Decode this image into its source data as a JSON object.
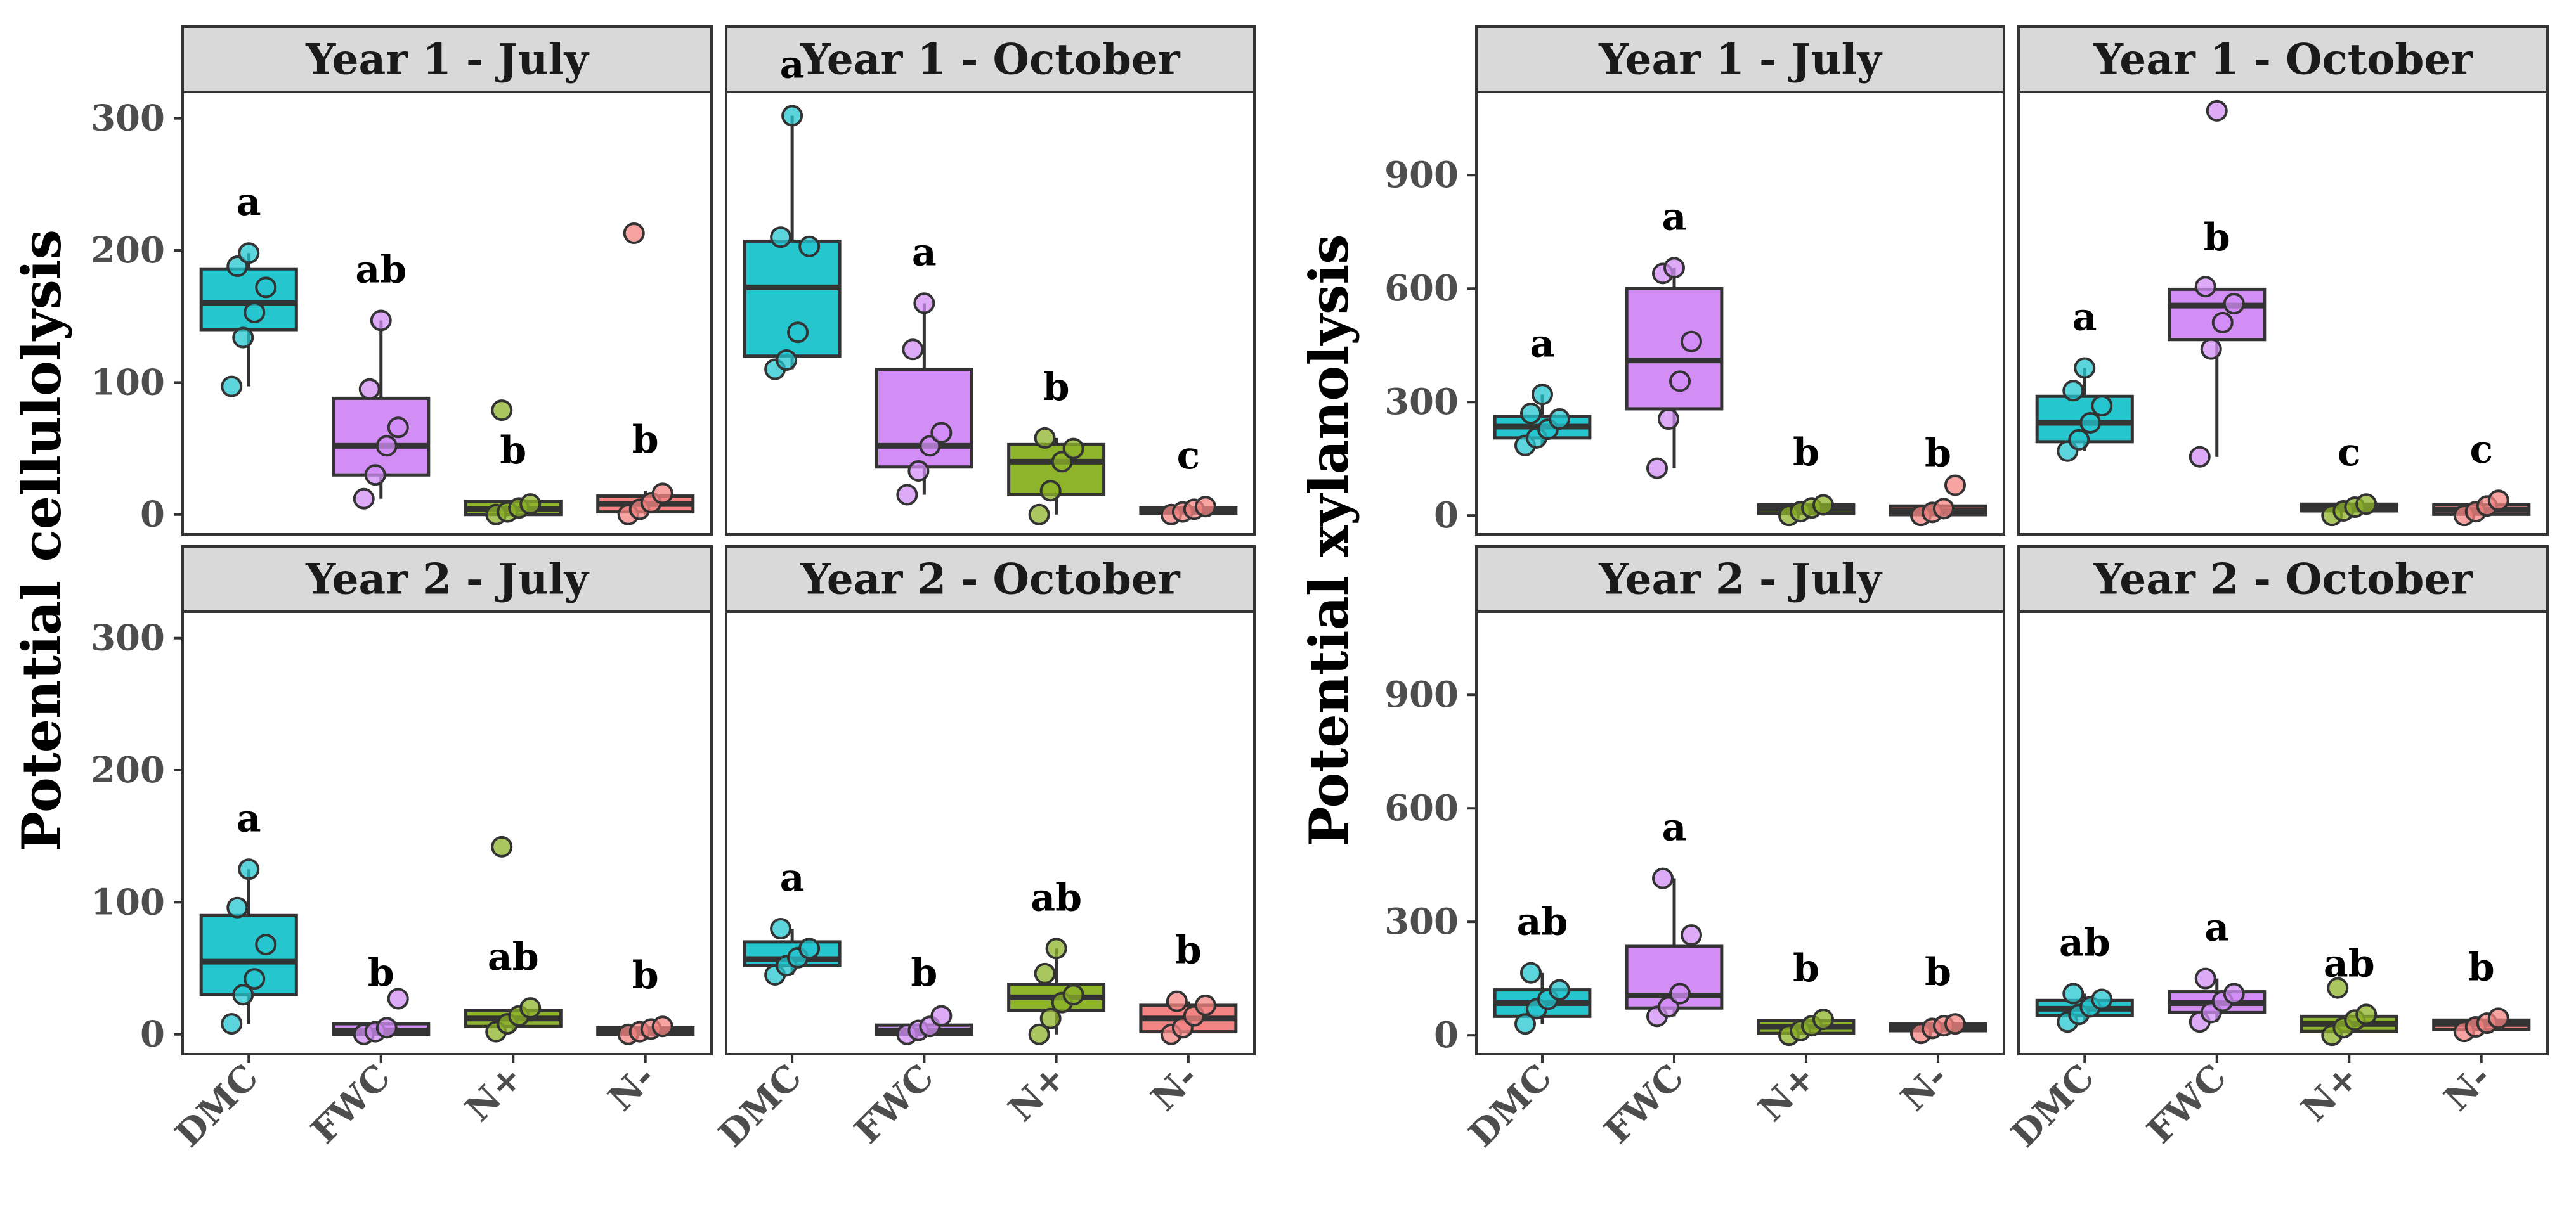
{
  "colors": {
    "DMC": "#26c6cf",
    "FWC": "#d28ef5",
    "N+": "#8db42a",
    "N-": "#f48483",
    "strip": "#d9d9d9",
    "frame": "#333333"
  },
  "groups": [
    "DMC",
    "FWC",
    "N+",
    "N-"
  ],
  "chart_data": [
    {
      "type": "box",
      "ylabel": "Potential cellulolysis",
      "ylim": [
        -15,
        320
      ],
      "yticks": [
        0,
        100,
        200,
        300
      ],
      "categories": [
        "DMC",
        "FWC",
        "N+",
        "N-"
      ],
      "panels": [
        {
          "title": "Year 1 - July",
          "boxes": [
            {
              "group": "DMC",
              "q1": 140,
              "median": 160,
              "q3": 186,
              "wlow": 97,
              "whigh": 198,
              "letter": "a",
              "points": [
                97,
                134,
                153,
                172,
                188,
                198
              ]
            },
            {
              "group": "FWC",
              "q1": 30,
              "median": 52,
              "q3": 88,
              "wlow": 12,
              "whigh": 147,
              "letter": "ab",
              "points": [
                12,
                30,
                52,
                66,
                95,
                147
              ]
            },
            {
              "group": "N+",
              "q1": 0,
              "median": 4,
              "q3": 10,
              "wlow": 0,
              "whigh": 10,
              "letter": "b",
              "points": [
                0,
                2,
                5,
                8,
                79
              ]
            },
            {
              "group": "N-",
              "q1": 2,
              "median": 8,
              "q3": 14,
              "wlow": 0,
              "whigh": 18,
              "letter": "b",
              "points": [
                0,
                4,
                9,
                16,
                213
              ]
            }
          ]
        },
        {
          "title": "Year 1 - October",
          "boxes": [
            {
              "group": "DMC",
              "q1": 120,
              "median": 172,
              "q3": 207,
              "wlow": 110,
              "whigh": 302,
              "letter": "a",
              "points": [
                110,
                117,
                138,
                203,
                210,
                302
              ]
            },
            {
              "group": "FWC",
              "q1": 36,
              "median": 52,
              "q3": 110,
              "wlow": 15,
              "whigh": 160,
              "letter": "a",
              "points": [
                15,
                33,
                52,
                62,
                125,
                160
              ]
            },
            {
              "group": "N+",
              "q1": 15,
              "median": 40,
              "q3": 53,
              "wlow": 0,
              "whigh": 58,
              "letter": "b",
              "points": [
                0,
                18,
                40,
                50,
                58
              ]
            },
            {
              "group": "N-",
              "q1": 1,
              "median": 3,
              "q3": 5,
              "wlow": 0,
              "whigh": 6,
              "letter": "c",
              "points": [
                0,
                2,
                4,
                6
              ]
            }
          ]
        },
        {
          "title": "Year 2 - July",
          "boxes": [
            {
              "group": "DMC",
              "q1": 30,
              "median": 55,
              "q3": 90,
              "wlow": 8,
              "whigh": 125,
              "letter": "a",
              "points": [
                8,
                30,
                42,
                68,
                96,
                125
              ]
            },
            {
              "group": "FWC",
              "q1": 0,
              "median": 3,
              "q3": 8,
              "wlow": 0,
              "whigh": 8,
              "letter": "b",
              "points": [
                0,
                2,
                5,
                27
              ]
            },
            {
              "group": "N+",
              "q1": 6,
              "median": 12,
              "q3": 18,
              "wlow": 2,
              "whigh": 20,
              "letter": "ab",
              "points": [
                2,
                8,
                14,
                20,
                142
              ]
            },
            {
              "group": "N-",
              "q1": 0,
              "median": 2,
              "q3": 5,
              "wlow": 0,
              "whigh": 6,
              "letter": "b",
              "points": [
                0,
                2,
                4,
                6
              ]
            }
          ]
        },
        {
          "title": "Year 2 - October",
          "boxes": [
            {
              "group": "DMC",
              "q1": 52,
              "median": 57,
              "q3": 70,
              "wlow": 45,
              "whigh": 80,
              "letter": "a",
              "points": [
                45,
                52,
                58,
                65,
                80
              ]
            },
            {
              "group": "FWC",
              "q1": 0,
              "median": 3,
              "q3": 7,
              "wlow": 0,
              "whigh": 8,
              "letter": "b",
              "points": [
                0,
                3,
                6,
                14
              ]
            },
            {
              "group": "N+",
              "q1": 18,
              "median": 28,
              "q3": 38,
              "wlow": 0,
              "whigh": 65,
              "letter": "ab",
              "points": [
                0,
                12,
                24,
                30,
                46,
                65
              ]
            },
            {
              "group": "N-",
              "q1": 2,
              "median": 12,
              "q3": 22,
              "wlow": 0,
              "whigh": 25,
              "letter": "b",
              "points": [
                0,
                5,
                14,
                22,
                25
              ]
            }
          ]
        }
      ]
    },
    {
      "type": "box",
      "ylabel": "Potential xylanolysis",
      "ylim": [
        -50,
        1120
      ],
      "yticks": [
        0,
        300,
        600,
        900
      ],
      "categories": [
        "DMC",
        "FWC",
        "N+",
        "N-"
      ],
      "panels": [
        {
          "title": "Year 1 - July",
          "boxes": [
            {
              "group": "DMC",
              "q1": 205,
              "median": 235,
              "q3": 262,
              "wlow": 185,
              "whigh": 320,
              "letter": "a",
              "points": [
                185,
                205,
                228,
                255,
                270,
                320
              ]
            },
            {
              "group": "FWC",
              "q1": 282,
              "median": 410,
              "q3": 600,
              "wlow": 125,
              "whigh": 655,
              "letter": "a",
              "points": [
                125,
                255,
                355,
                460,
                640,
                655
              ]
            },
            {
              "group": "N+",
              "q1": 5,
              "median": 18,
              "q3": 28,
              "wlow": 0,
              "whigh": 32,
              "letter": "b",
              "points": [
                0,
                10,
                20,
                28
              ]
            },
            {
              "group": "N-",
              "q1": 2,
              "median": 12,
              "q3": 25,
              "wlow": 0,
              "whigh": 30,
              "letter": "b",
              "points": [
                0,
                8,
                18,
                80
              ]
            }
          ]
        },
        {
          "title": "Year 1 - October",
          "boxes": [
            {
              "group": "DMC",
              "q1": 195,
              "median": 245,
              "q3": 315,
              "wlow": 170,
              "whigh": 390,
              "letter": "a",
              "points": [
                170,
                200,
                245,
                290,
                330,
                390
              ]
            },
            {
              "group": "FWC",
              "q1": 465,
              "median": 555,
              "q3": 598,
              "wlow": 155,
              "whigh": 600,
              "letter": "b",
              "points": [
                155,
                440,
                510,
                560,
                605,
                1070
              ]
            },
            {
              "group": "N+",
              "q1": 12,
              "median": 22,
              "q3": 30,
              "wlow": 0,
              "whigh": 32,
              "letter": "c",
              "points": [
                0,
                12,
                22,
                30
              ]
            },
            {
              "group": "N-",
              "q1": 3,
              "median": 15,
              "q3": 28,
              "wlow": 0,
              "whigh": 40,
              "letter": "c",
              "points": [
                0,
                10,
                25,
                40
              ]
            }
          ]
        },
        {
          "title": "Year 2 - July",
          "boxes": [
            {
              "group": "DMC",
              "q1": 50,
              "median": 85,
              "q3": 120,
              "wlow": 30,
              "whigh": 165,
              "letter": "ab",
              "points": [
                30,
                70,
                95,
                120,
                165
              ]
            },
            {
              "group": "FWC",
              "q1": 72,
              "median": 105,
              "q3": 235,
              "wlow": 50,
              "whigh": 415,
              "letter": "a",
              "points": [
                50,
                75,
                110,
                265,
                415
              ]
            },
            {
              "group": "N+",
              "q1": 5,
              "median": 22,
              "q3": 38,
              "wlow": 0,
              "whigh": 42,
              "letter": "b",
              "points": [
                0,
                12,
                25,
                42
              ]
            },
            {
              "group": "N-",
              "q1": 12,
              "median": 22,
              "q3": 30,
              "wlow": 5,
              "whigh": 32,
              "letter": "b",
              "points": [
                5,
                18,
                25,
                30
              ]
            }
          ]
        },
        {
          "title": "Year 2 - October",
          "boxes": [
            {
              "group": "DMC",
              "q1": 52,
              "median": 70,
              "q3": 92,
              "wlow": 35,
              "whigh": 110,
              "letter": "ab",
              "points": [
                35,
                55,
                75,
                95,
                110
              ]
            },
            {
              "group": "FWC",
              "q1": 60,
              "median": 85,
              "q3": 115,
              "wlow": 35,
              "whigh": 150,
              "letter": "a",
              "points": [
                35,
                60,
                90,
                110,
                150
              ]
            },
            {
              "group": "N+",
              "q1": 10,
              "median": 30,
              "q3": 50,
              "wlow": 0,
              "whigh": 55,
              "letter": "ab",
              "points": [
                0,
                20,
                40,
                55,
                125
              ]
            },
            {
              "group": "N-",
              "q1": 15,
              "median": 30,
              "q3": 40,
              "wlow": 10,
              "whigh": 45,
              "letter": "b",
              "points": [
                10,
                22,
                32,
                45
              ]
            }
          ]
        }
      ]
    }
  ]
}
